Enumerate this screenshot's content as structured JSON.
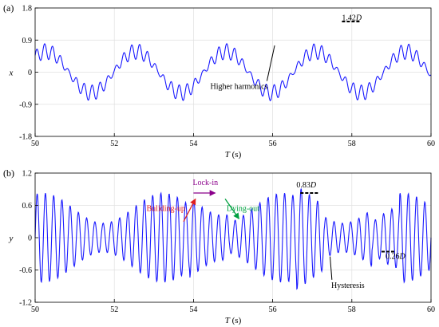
{
  "chart_data": [
    {
      "panel_label": "(a)",
      "type": "line",
      "xlabel": "T (s)",
      "ylabel": "x",
      "xlim": [
        50,
        60
      ],
      "ylim": [
        -1.8,
        1.8
      ],
      "xticks": [
        50,
        52,
        54,
        56,
        58,
        60
      ],
      "yticks": [
        -1.8,
        -0.9,
        0,
        0.9,
        1.8
      ],
      "ytick_labels": [
        "-1.8",
        "-0.9",
        "0",
        "0.9",
        "1.8"
      ],
      "grid": true,
      "line_color": "#1a1aff",
      "signal": {
        "components": [
          {
            "amplitude": 0.58,
            "frequency_hz": 0.44,
            "phase_rad": 0.8
          },
          {
            "amplitude": 0.2,
            "frequency_hz": 5.0,
            "phase_rad": 0.3,
            "envelope": "variable"
          }
        ],
        "step_s": 0.01
      },
      "annotations": {
        "higher_harmonics": {
          "text": "Higher harmonics",
          "x": 55.15,
          "y": -0.47,
          "arrow_to": [
            56.05,
            0.75
          ]
        },
        "peak": {
          "text": "1.42",
          "italic_suffix": "D",
          "x": 58.0,
          "y": 1.45,
          "bar_x": [
            57.75,
            58.2
          ],
          "bar_y": 1.42
        }
      }
    },
    {
      "panel_label": "(b)",
      "type": "line",
      "xlabel": "T (s)",
      "ylabel": "y",
      "xlim": [
        50,
        60
      ],
      "ylim": [
        -1.2,
        1.2
      ],
      "xticks": [
        50,
        52,
        54,
        56,
        58,
        60
      ],
      "yticks": [
        -1.2,
        -0.6,
        0,
        0.6,
        1.2
      ],
      "ytick_labels": [
        "-1.2",
        "-0.6",
        "0",
        "0.6",
        "1.2"
      ],
      "grid": true,
      "line_color": "#1a1aff",
      "signal": {
        "components": [
          {
            "amplitude": 0.6,
            "frequency_hz": 4.8,
            "phase_rad": 0.0,
            "envelope": "variable"
          }
        ],
        "step_s": 0.01
      },
      "annotations": {
        "building_up": {
          "text": "Buliding-up",
          "color": "#e02020",
          "x": 53.3,
          "y": 0.5,
          "arrow_from": [
            53.75,
            0.3
          ],
          "arrow_to": [
            54.05,
            0.72
          ]
        },
        "lock_in": {
          "text": "Lock-in",
          "color": "#8b008b",
          "x": 54.3,
          "y": 0.98,
          "arrow_from": [
            54.0,
            0.83
          ],
          "arrow_to": [
            54.55,
            0.83
          ]
        },
        "dying_out": {
          "text": "Dying-out",
          "color": "#00a040",
          "x": 55.25,
          "y": 0.5,
          "arrow_from": [
            54.8,
            0.72
          ],
          "arrow_to": [
            55.15,
            0.35
          ]
        },
        "peak": {
          "text": "0.83",
          "italic_suffix": "D",
          "x": 56.85,
          "y": 0.93,
          "bar_x": [
            56.7,
            57.15
          ],
          "bar_y": 0.83
        },
        "min": {
          "text": "0.26",
          "italic_suffix": "D",
          "x": 59.1,
          "y": -0.39,
          "bar_x": [
            58.75,
            59.1
          ],
          "bar_y": -0.26
        },
        "hysteresis": {
          "text": "Hysteresis",
          "x": 57.9,
          "y": -0.93,
          "arrow_to": [
            57.45,
            -0.35
          ]
        }
      }
    }
  ]
}
